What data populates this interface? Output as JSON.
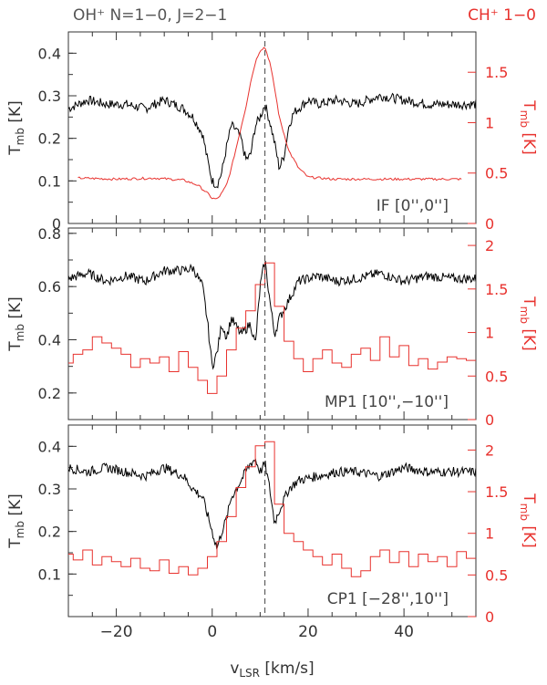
{
  "header": {
    "left_label": "OH⁺  N=1−0, J=2−1",
    "right_label": "CH⁺ 1−0"
  },
  "colors": {
    "oh_series": "#000000",
    "ch_series": "#e8322e",
    "axes": "#333333",
    "marker": "#444444"
  },
  "chart_data": [
    {
      "type": "line",
      "panel_label": "IF [0'',0'']",
      "xlabel": "v_LSR [km/s]",
      "ylabel_left": "T_mb [K]",
      "ylabel_right": "T_mb [K]",
      "xlim": [
        -30,
        55
      ],
      "ylim_left": [
        0,
        0.45
      ],
      "ylim_right": [
        0,
        1.9
      ],
      "yticks_left": [
        0,
        0.1,
        0.2,
        0.3,
        0.4
      ],
      "yticks_right": [
        0,
        0.5,
        1,
        1.5
      ],
      "velocity_marker": 11,
      "series": [
        {
          "name": "OH⁺  N=1−0, J=2−1",
          "axis": "left",
          "step": false,
          "x": [
            -30,
            -26,
            -22,
            -18,
            -14,
            -10,
            -6,
            -4,
            -2,
            -1,
            0,
            1,
            2,
            3,
            4,
            5,
            6,
            7,
            8,
            9,
            10,
            11,
            12,
            13,
            14,
            15,
            16,
            17,
            18,
            20,
            22,
            26,
            30,
            35,
            40,
            45,
            50,
            55
          ],
          "values": [
            0.27,
            0.29,
            0.28,
            0.28,
            0.27,
            0.29,
            0.27,
            0.25,
            0.21,
            0.15,
            0.1,
            0.09,
            0.12,
            0.18,
            0.23,
            0.22,
            0.2,
            0.15,
            0.16,
            0.23,
            0.25,
            0.28,
            0.24,
            0.19,
            0.13,
            0.16,
            0.23,
            0.26,
            0.27,
            0.29,
            0.28,
            0.29,
            0.28,
            0.3,
            0.29,
            0.28,
            0.28,
            0.28
          ]
        },
        {
          "name": "CH⁺ 1−0",
          "axis": "right",
          "step": false,
          "x": [
            -28,
            -20,
            -12,
            -6,
            -3,
            -1,
            0,
            1,
            2,
            3,
            4,
            5,
            6,
            7,
            8,
            9,
            10,
            11,
            12,
            13,
            14,
            16,
            18,
            20,
            25,
            30,
            40,
            52
          ],
          "values": [
            0.45,
            0.44,
            0.45,
            0.43,
            0.38,
            0.3,
            0.25,
            0.24,
            0.3,
            0.38,
            0.55,
            0.75,
            0.95,
            1.15,
            1.4,
            1.6,
            1.72,
            1.75,
            1.6,
            1.35,
            1.05,
            0.72,
            0.55,
            0.46,
            0.44,
            0.44,
            0.44,
            0.44
          ]
        }
      ]
    },
    {
      "type": "line",
      "panel_label": "MP1 [10'',−10'']",
      "xlabel": "v_LSR [km/s]",
      "ylabel_left": "T_mb [K]",
      "ylabel_right": "T_mb [K]",
      "xlim": [
        -30,
        55
      ],
      "ylim_left": [
        0.1,
        0.82
      ],
      "ylim_right": [
        0,
        2.2
      ],
      "yticks_left": [
        0.2,
        0.4,
        0.6,
        0.8
      ],
      "yticks_right": [
        0,
        0.5,
        1,
        1.5,
        2
      ],
      "velocity_marker": 11,
      "series": [
        {
          "name": "OH⁺  N=1−0, J=2−1",
          "axis": "left",
          "step": false,
          "x": [
            -30,
            -26,
            -22,
            -18,
            -14,
            -10,
            -6,
            -4,
            -2,
            -1,
            0,
            1,
            2,
            3,
            4,
            6,
            8,
            9,
            10,
            11,
            12,
            13,
            14,
            16,
            18,
            22,
            26,
            30,
            35,
            40,
            45,
            50,
            55
          ],
          "values": [
            0.63,
            0.65,
            0.62,
            0.64,
            0.62,
            0.66,
            0.66,
            0.67,
            0.6,
            0.47,
            0.3,
            0.35,
            0.46,
            0.41,
            0.48,
            0.42,
            0.46,
            0.38,
            0.6,
            0.7,
            0.55,
            0.42,
            0.48,
            0.55,
            0.62,
            0.64,
            0.62,
            0.63,
            0.65,
            0.62,
            0.64,
            0.63,
            0.63
          ]
        },
        {
          "name": "CH⁺ 1−0",
          "axis": "right",
          "step": true,
          "x": [
            -30,
            -28,
            -26,
            -24,
            -22,
            -20,
            -18,
            -16,
            -14,
            -12,
            -10,
            -8,
            -6,
            -4,
            -2,
            0,
            2,
            4,
            6,
            8,
            10,
            12,
            14,
            16,
            18,
            20,
            22,
            24,
            26,
            28,
            30,
            32,
            34,
            36,
            38,
            40,
            42,
            44,
            46,
            48,
            50,
            52,
            54
          ],
          "values": [
            0.65,
            0.75,
            0.8,
            0.95,
            0.88,
            0.82,
            0.75,
            0.6,
            0.7,
            0.65,
            0.72,
            0.55,
            0.78,
            0.6,
            0.45,
            0.3,
            0.5,
            0.8,
            1.05,
            1.25,
            1.55,
            1.8,
            1.3,
            0.9,
            0.7,
            0.55,
            0.7,
            0.8,
            0.65,
            0.6,
            0.75,
            0.82,
            0.68,
            0.95,
            0.72,
            0.85,
            0.62,
            0.7,
            0.58,
            0.66,
            0.72,
            0.7,
            0.68
          ]
        }
      ]
    },
    {
      "type": "line",
      "panel_label": "CP1 [−28'',10'']",
      "xlabel": "v_LSR [km/s]",
      "ylabel_left": "T_mb [K]",
      "ylabel_right": "T_mb [K]",
      "xlim": [
        -30,
        55
      ],
      "ylim_left": [
        0,
        0.45
      ],
      "ylim_right": [
        0,
        2.3
      ],
      "yticks_left": [
        0.1,
        0.2,
        0.3,
        0.4
      ],
      "yticks_right": [
        0,
        0.5,
        1,
        1.5,
        2
      ],
      "velocity_marker": 11,
      "series": [
        {
          "name": "OH⁺  N=1−0, J=2−1",
          "axis": "left",
          "step": false,
          "x": [
            -30,
            -26,
            -22,
            -18,
            -14,
            -10,
            -6,
            -4,
            -2,
            -1,
            0,
            1,
            2,
            3,
            4,
            6,
            8,
            9,
            10,
            11,
            12,
            13,
            14,
            16,
            18,
            22,
            26,
            30,
            35,
            40,
            45,
            50,
            55
          ],
          "values": [
            0.35,
            0.34,
            0.35,
            0.34,
            0.33,
            0.35,
            0.33,
            0.3,
            0.28,
            0.24,
            0.2,
            0.16,
            0.2,
            0.23,
            0.28,
            0.32,
            0.36,
            0.37,
            0.34,
            0.36,
            0.3,
            0.22,
            0.25,
            0.3,
            0.32,
            0.33,
            0.34,
            0.34,
            0.33,
            0.35,
            0.34,
            0.34,
            0.34
          ]
        },
        {
          "name": "CH⁺ 1−0",
          "axis": "right",
          "step": true,
          "x": [
            -30,
            -28,
            -26,
            -24,
            -22,
            -20,
            -18,
            -16,
            -14,
            -12,
            -10,
            -8,
            -6,
            -4,
            -2,
            0,
            2,
            4,
            6,
            8,
            10,
            12,
            14,
            16,
            18,
            20,
            22,
            24,
            26,
            28,
            30,
            32,
            34,
            36,
            38,
            40,
            42,
            44,
            46,
            48,
            50,
            52,
            54
          ],
          "values": [
            0.75,
            0.68,
            0.8,
            0.62,
            0.72,
            0.66,
            0.6,
            0.7,
            0.58,
            0.55,
            0.68,
            0.52,
            0.6,
            0.5,
            0.58,
            0.72,
            0.9,
            1.2,
            1.55,
            1.8,
            2.05,
            2.1,
            1.35,
            1.0,
            0.9,
            0.8,
            0.72,
            0.62,
            0.75,
            0.58,
            0.48,
            0.55,
            0.72,
            0.8,
            0.65,
            0.78,
            0.6,
            0.75,
            0.66,
            0.72,
            0.6,
            0.78,
            0.7
          ]
        }
      ]
    }
  ],
  "xaxis": {
    "ticks": [
      -20,
      0,
      20,
      40
    ],
    "label_main": "v",
    "label_sub": "LSR",
    "label_rest": " [km/s]"
  }
}
